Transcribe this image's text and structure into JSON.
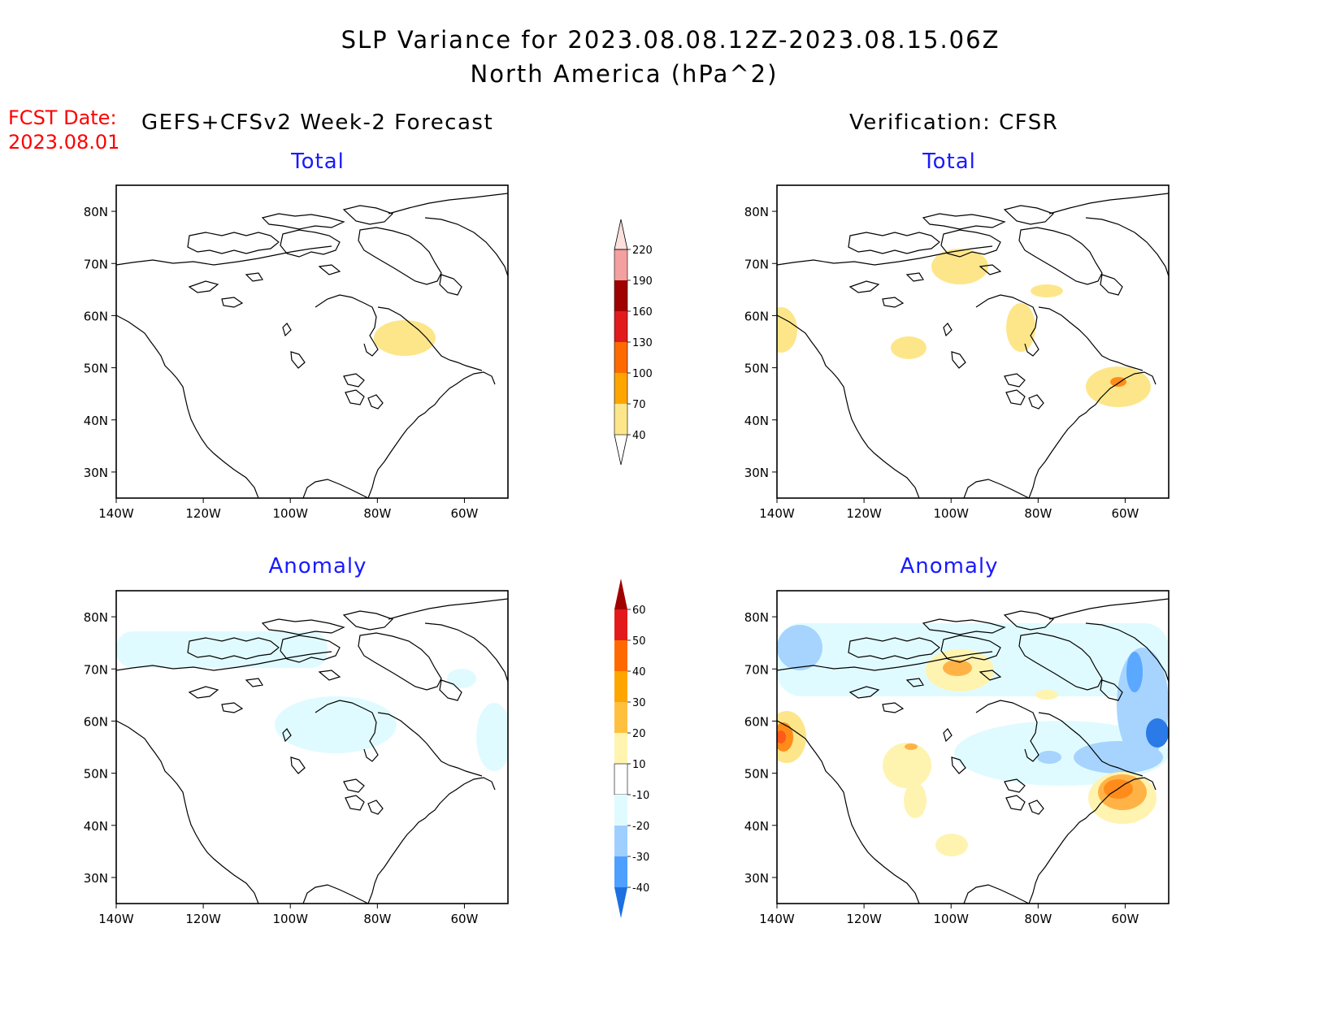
{
  "title": {
    "line1": "SLP Variance for 2023.08.08.12Z-2023.08.15.06Z",
    "line2": "North America (hPa^2)"
  },
  "fcst": {
    "label": "FCST Date:",
    "date": "2023.08.01"
  },
  "headers": {
    "left": "GEFS+CFSv2 Week-2 Forecast",
    "right": "Verification: CFSR"
  },
  "panels": {
    "forecast_total": "Total",
    "forecast_anomaly": "Anomaly",
    "verif_total": "Total",
    "verif_anomaly": "Anomaly"
  },
  "axes": {
    "lat_labels": [
      "80N",
      "70N",
      "60N",
      "50N",
      "40N",
      "30N"
    ],
    "lat_values": [
      80,
      70,
      60,
      50,
      40,
      30
    ],
    "lon_labels": [
      "140W",
      "120W",
      "100W",
      "80W",
      "60W"
    ],
    "lon_values": [
      -140,
      -120,
      -100,
      -80,
      -60
    ],
    "lat_range": [
      25,
      85
    ],
    "lon_range": [
      -140,
      -50
    ]
  },
  "colorbar_total": {
    "levels": [
      "40",
      "70",
      "100",
      "130",
      "160",
      "190",
      "220"
    ],
    "colors": [
      "#fde68a",
      "#ffa500",
      "#ff6a00",
      "#e31a1c",
      "#a00000",
      "#f4a0a0",
      "#fde0dc"
    ]
  },
  "colorbar_anomaly": {
    "levels": [
      "60",
      "50",
      "40",
      "30",
      "20",
      "10",
      "-10",
      "-20",
      "-30",
      "-40"
    ],
    "colors_top_down": [
      "#a00000",
      "#e31a1c",
      "#ff6a00",
      "#ffa500",
      "#ffc040",
      "#fff5b0",
      "#ffffff",
      "#e0fbff",
      "#9ecfff",
      "#4da0ff",
      "#1e6fe0"
    ]
  },
  "legend_colors": {
    "light_yellow": "#fff3b0",
    "yellow": "#fde68a",
    "orange": "#ffb347",
    "dark_orange": "#ff8c1a",
    "red": "#ff5a1a",
    "pale_blue": "#e0fbff",
    "light_blue": "#a6d4ff",
    "mid_blue": "#5aa8ff",
    "dark_blue": "#2a7ae8"
  }
}
